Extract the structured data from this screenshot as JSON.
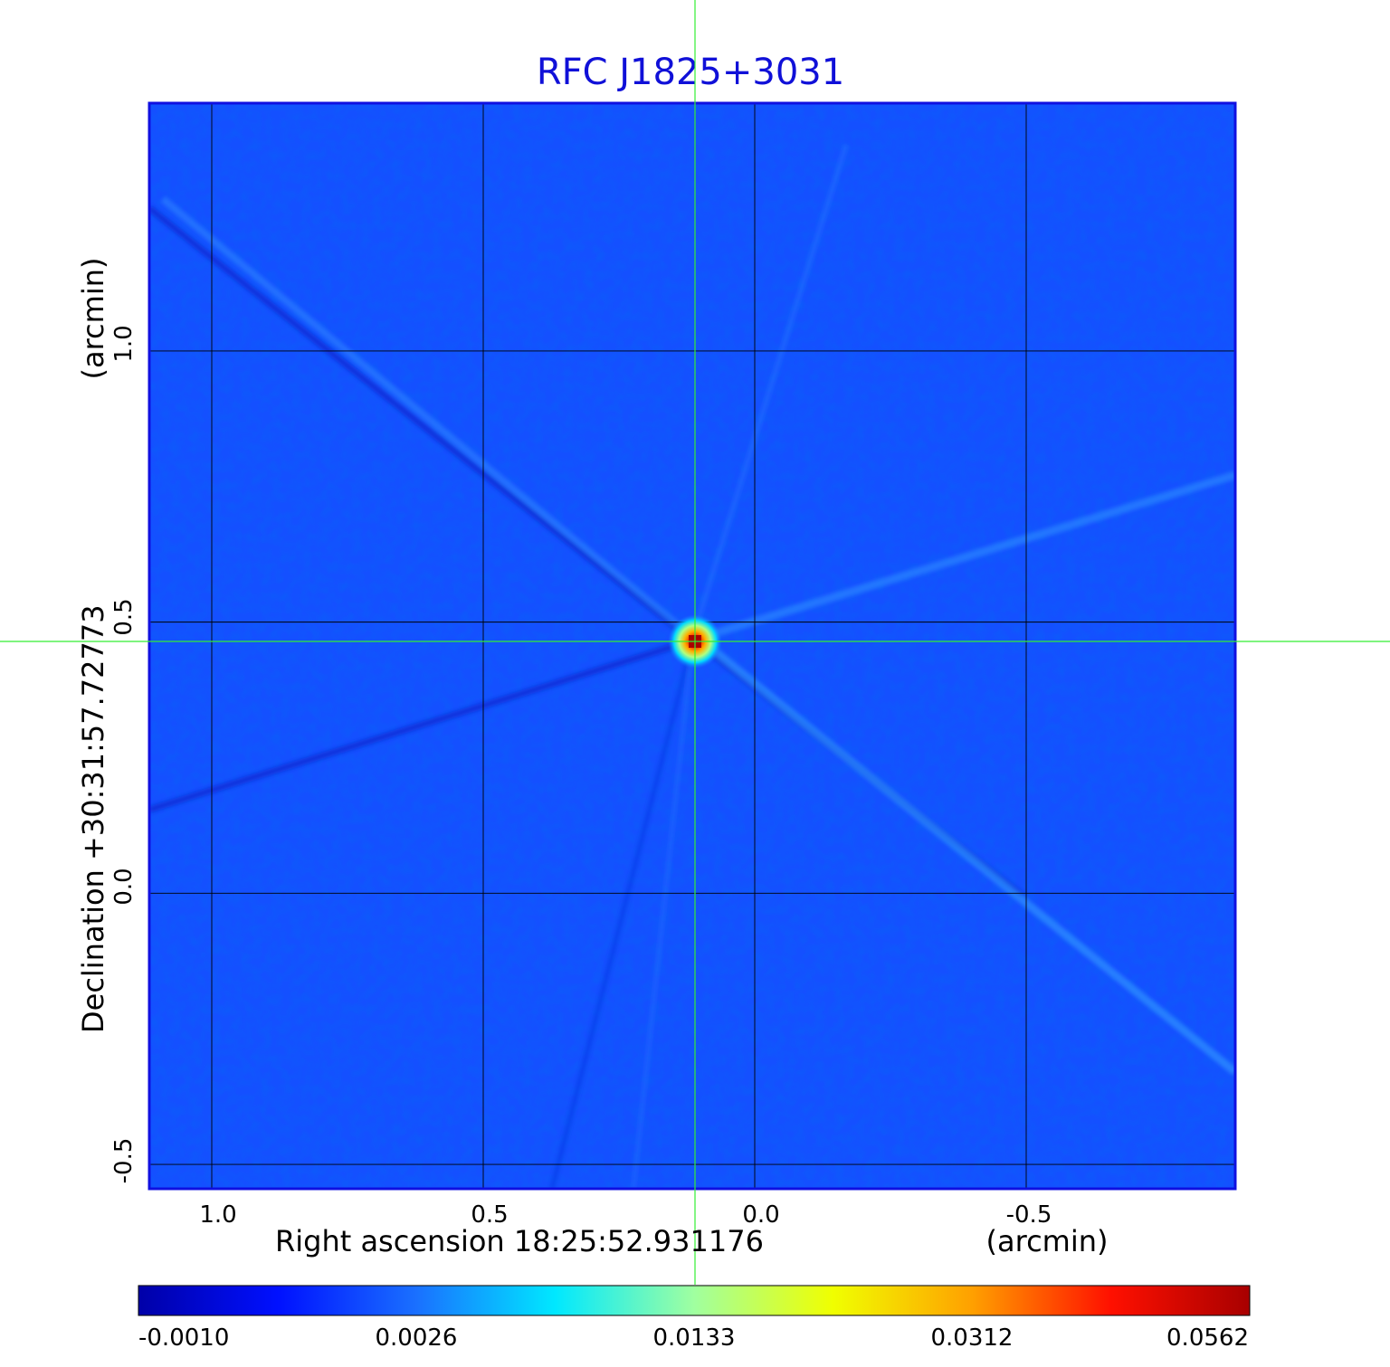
{
  "chart_data": {
    "type": "heatmap",
    "title": "RFC J1825+3031",
    "colors": {
      "title": "#1010d8",
      "crosshair": "#33ee33",
      "grid": "#000000",
      "background_map": "#1450ff"
    },
    "xaxis": {
      "label": "Right ascension  18:25:52.931176",
      "unit_label": "(arcmin)",
      "ticks": [
        "1.0",
        "0.5",
        "0.0",
        "-0.5"
      ],
      "tick_values": [
        1.0,
        0.5,
        0.0,
        -0.5
      ],
      "range": [
        1.115,
        -0.885
      ],
      "reversed": true
    },
    "yaxis": {
      "label": "Declination  +30:31:57.72773",
      "unit_label": "(arcmin)",
      "ticks": [
        "-0.5",
        "0.0",
        "0.5",
        "1.0"
      ],
      "tick_values": [
        -0.5,
        0.0,
        0.5,
        1.0
      ],
      "range": [
        -0.545,
        1.457
      ]
    },
    "grid": true,
    "crosshair": {
      "x": 0.11,
      "y": 0.465
    },
    "source_peak": {
      "x": 0.11,
      "y": 0.465,
      "value": 0.0562
    },
    "colorbar": {
      "ticks": [
        "-0.0010",
        "0.0026",
        "0.0133",
        "0.0312",
        "0.0562"
      ],
      "tick_values": [
        -0.001,
        0.0026,
        0.0133,
        0.0312,
        0.0562
      ],
      "stops": [
        "#0000a8",
        "#0010ff",
        "#1a70ff",
        "#00e8ff",
        "#a0ffa0",
        "#f0ff00",
        "#ffa000",
        "#ff1000",
        "#a80000"
      ]
    }
  }
}
